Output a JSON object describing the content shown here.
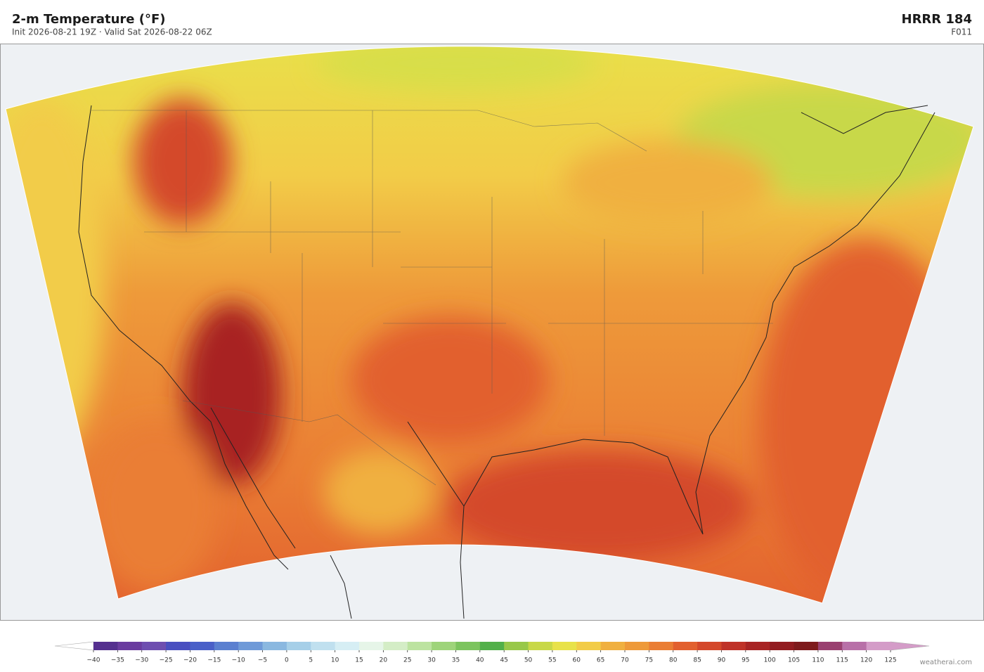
{
  "header": {
    "title": "2-m Temperature  (°F)",
    "subtitle": "Init 2026-08-21 19Z  ·  Valid Sat 2026-08-22 06Z",
    "model": "HRRR  184",
    "forecast_hour": "F011"
  },
  "colorbar": {
    "ticks": [
      {
        "value": -40,
        "label": "−40"
      },
      {
        "value": -35,
        "label": "−35"
      },
      {
        "value": -30,
        "label": "−30"
      },
      {
        "value": -25,
        "label": "−25"
      },
      {
        "value": -20,
        "label": "−20"
      },
      {
        "value": -15,
        "label": "−15"
      },
      {
        "value": -10,
        "label": "−10"
      },
      {
        "value": -5,
        "label": "−5"
      },
      0,
      5,
      10,
      15,
      20,
      25,
      30,
      35,
      40,
      45,
      50,
      55,
      60,
      65,
      70,
      75,
      80,
      85,
      90,
      95,
      100,
      105,
      110,
      115,
      120,
      125
    ],
    "colors": [
      "#55308f",
      "#6a3c9f",
      "#6e4eb0",
      "#4a4fc0",
      "#4a60c8",
      "#5b80d0",
      "#6f9ad8",
      "#8ab8e0",
      "#a6cfe8",
      "#c0e0ef",
      "#d6eef4",
      "#e6f5e8",
      "#d4edc6",
      "#bce3a0",
      "#9ed47a",
      "#7cc45e",
      "#52b04a",
      "#98c84a",
      "#c8d848",
      "#e8e24a",
      "#f2cc48",
      "#f0b040",
      "#ee9a3a",
      "#ea7e34",
      "#e2602e",
      "#d4482a",
      "#bf3228",
      "#a82424",
      "#921c20",
      "#7e1a1c",
      "#9a4070",
      "#b870a8",
      "#d49cc8"
    ],
    "under_color": "#ffffff",
    "over_color": "#d49cc8"
  },
  "credit": "weatherai.com"
}
